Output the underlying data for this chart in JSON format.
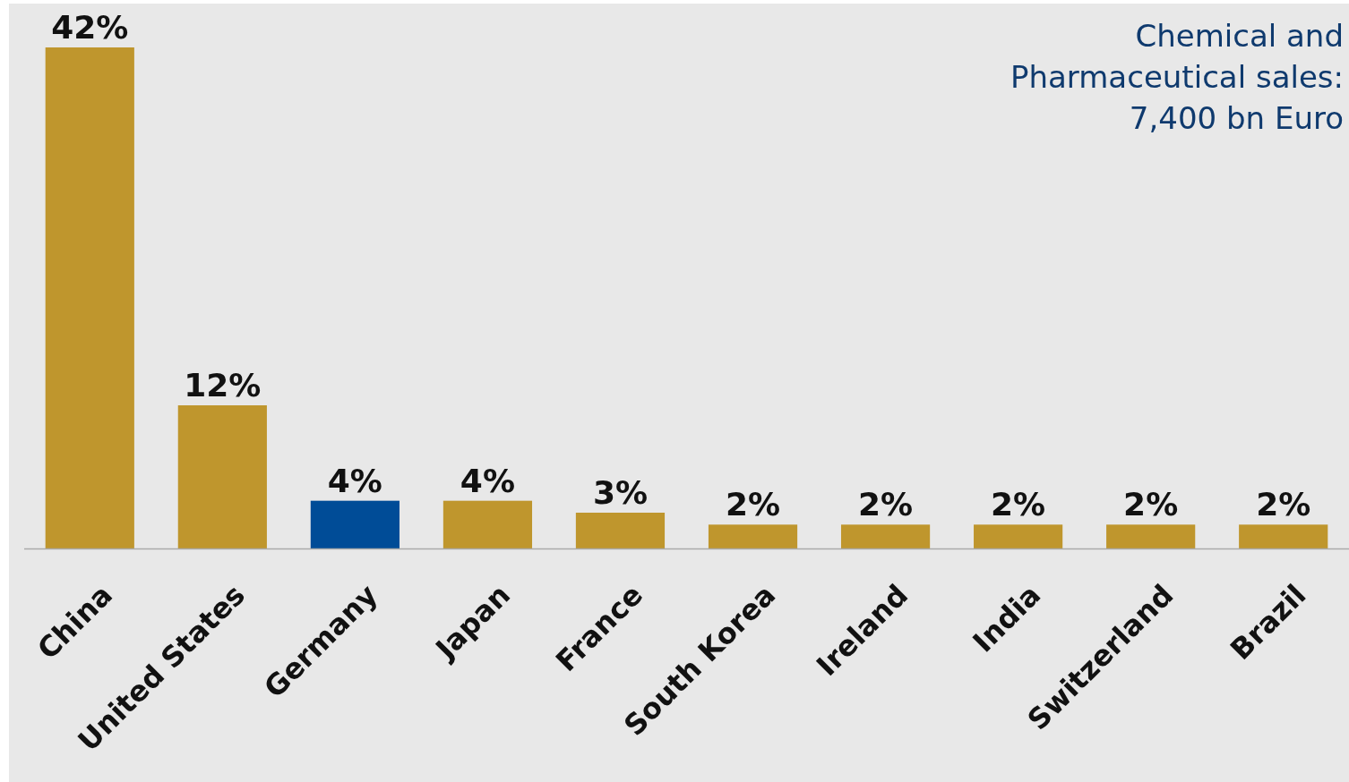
{
  "chart_data": {
    "type": "bar",
    "categories": [
      "China",
      "United States",
      "Germany",
      "Japan",
      "France",
      "South Korea",
      "Ireland",
      "India",
      "Switzerland",
      "Brazil"
    ],
    "values": [
      42,
      12,
      4,
      4,
      3,
      2,
      2,
      2,
      2,
      2
    ],
    "colors": [
      "#bf962d",
      "#bf962d",
      "#004c97",
      "#bf962d",
      "#bf962d",
      "#bf962d",
      "#bf962d",
      "#bf962d",
      "#bf962d",
      "#bf962d"
    ],
    "value_labels": [
      "42%",
      "12%",
      "4%",
      "4%",
      "3%",
      "2%",
      "2%",
      "2%",
      "2%",
      "2%"
    ],
    "annotations": [
      "Chemical and\nPharmaceutical sales:\n7,400 bn Euro"
    ]
  }
}
